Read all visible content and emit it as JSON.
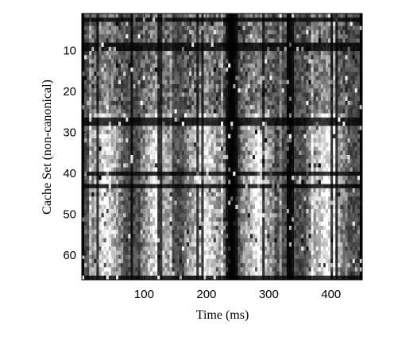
{
  "chart_data": {
    "type": "heatmap",
    "title": "",
    "xlabel": "Time (ms)",
    "ylabel": "Cache Set (non-canonical)",
    "xlim": [
      0,
      450
    ],
    "ylim": [
      1,
      66
    ],
    "y_inverted": true,
    "xticks": [
      100,
      200,
      300,
      400
    ],
    "yticks": [
      10,
      20,
      30,
      40,
      50,
      60
    ],
    "colormap": [
      "#000000",
      "#ffffff"
    ],
    "grid": false,
    "legend": "none",
    "n_rows": 64,
    "n_cols": 115,
    "bright_activity_bands_ms": [
      [
        10,
        65
      ],
      [
        95,
        145
      ],
      [
        165,
        230
      ],
      [
        255,
        310
      ],
      [
        360,
        425
      ]
    ],
    "dark_vertical_bands_ms": [
      [
        0,
        5
      ],
      [
        235,
        245
      ],
      [
        330,
        338
      ],
      [
        445,
        450
      ]
    ],
    "dark_horizontal_rows": [
      2,
      8,
      9,
      26,
      27,
      39,
      42,
      64,
      65
    ]
  }
}
